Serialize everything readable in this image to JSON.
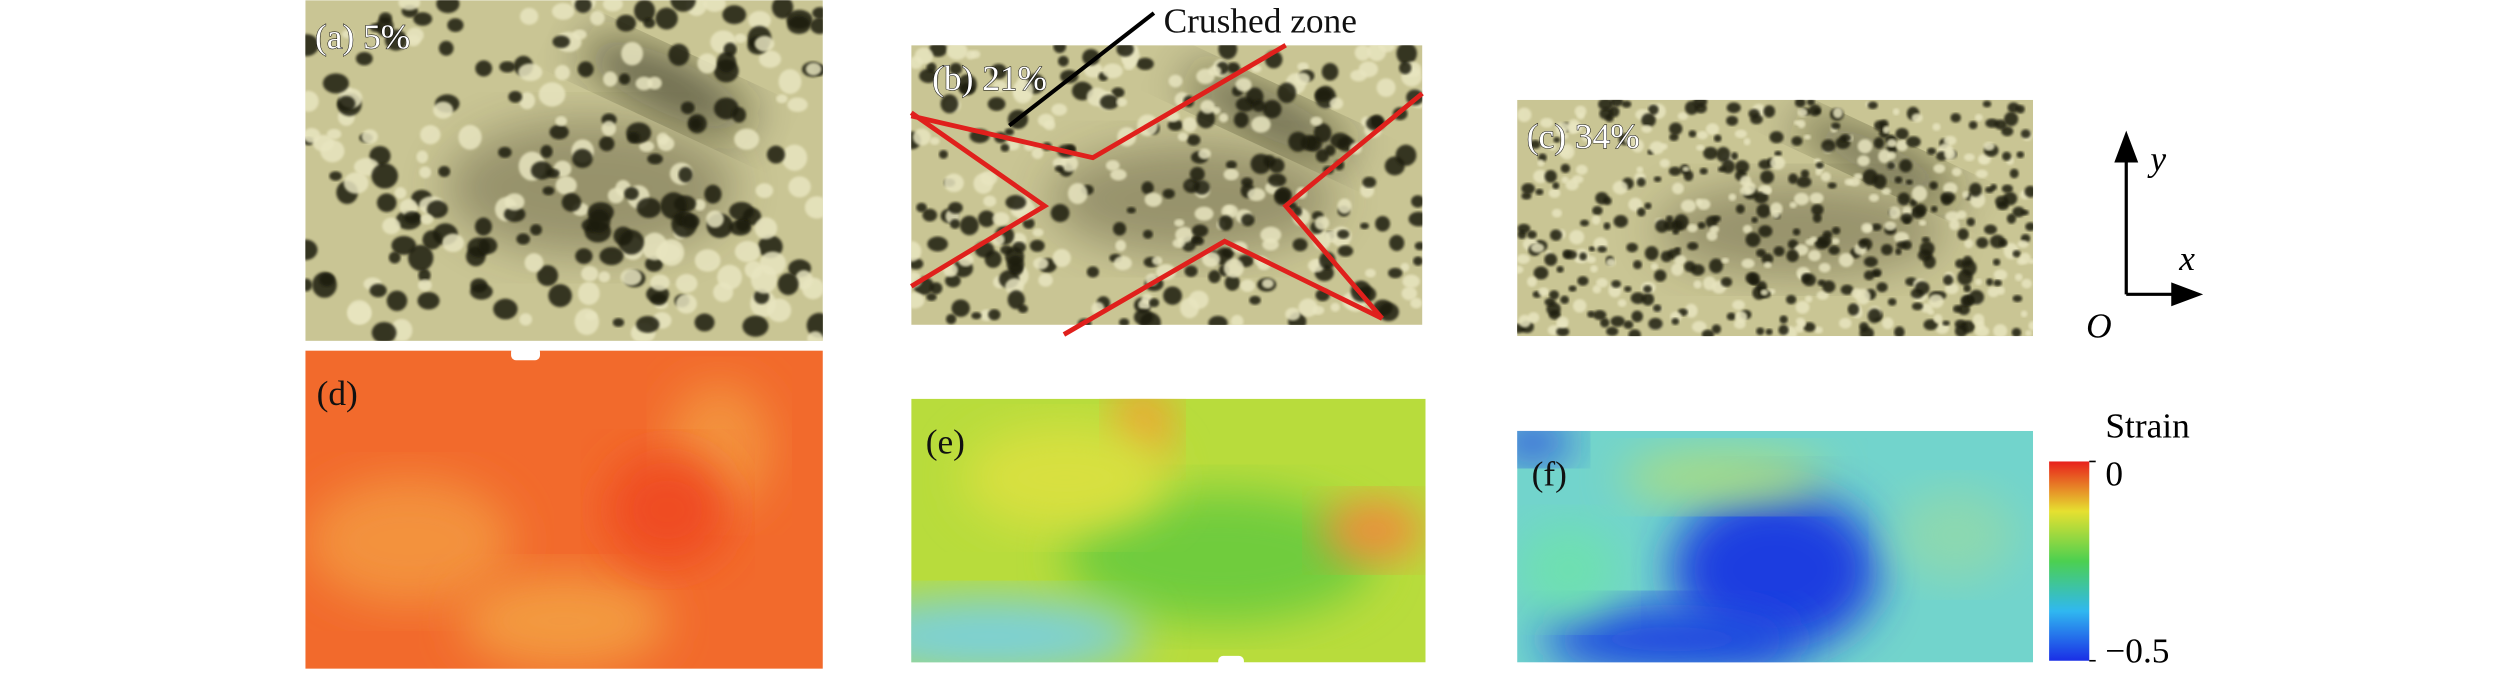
{
  "panels": [
    {
      "label": "(a) 5%"
    },
    {
      "label": "(b) 21%",
      "annotation": "Crushed zone"
    },
    {
      "label": "(c) 34%"
    },
    {
      "label": "(d)"
    },
    {
      "label": "(e)"
    },
    {
      "label": "(f)"
    }
  ],
  "colorbar": {
    "title": "Strain",
    "lim": [
      -0.5,
      0
    ],
    "ticks": [
      0,
      {
        "value": -0.5,
        "label": "−0.5"
      }
    ]
  },
  "axes": {
    "y": "y",
    "x": "x",
    "origin": "O"
  }
}
